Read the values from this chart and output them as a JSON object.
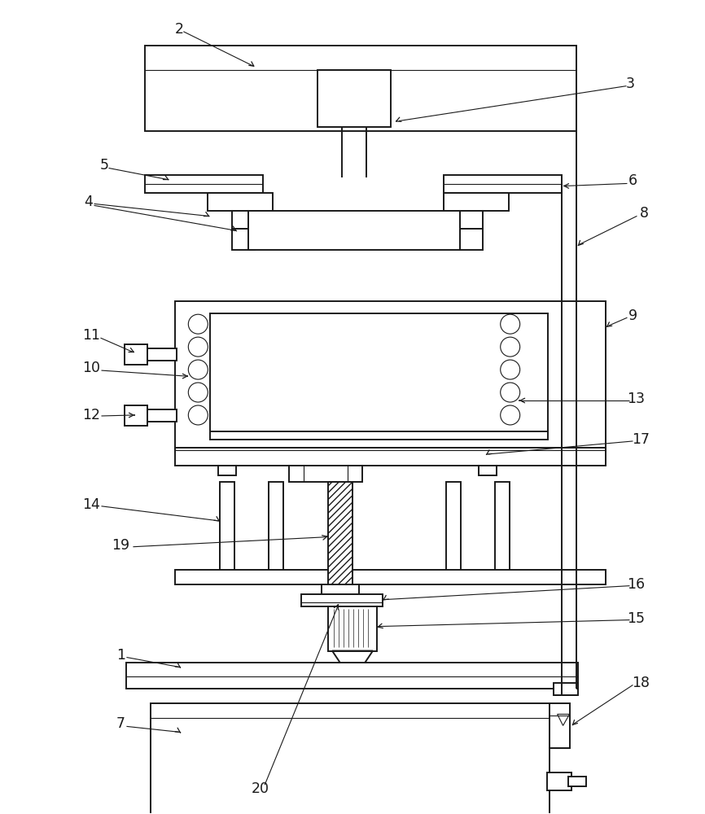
{
  "bg": "#ffffff",
  "lw": 1.4,
  "tlw": 0.8,
  "lc": "#1a1a1a",
  "fig_w": 8.66,
  "fig_h": 10.0
}
